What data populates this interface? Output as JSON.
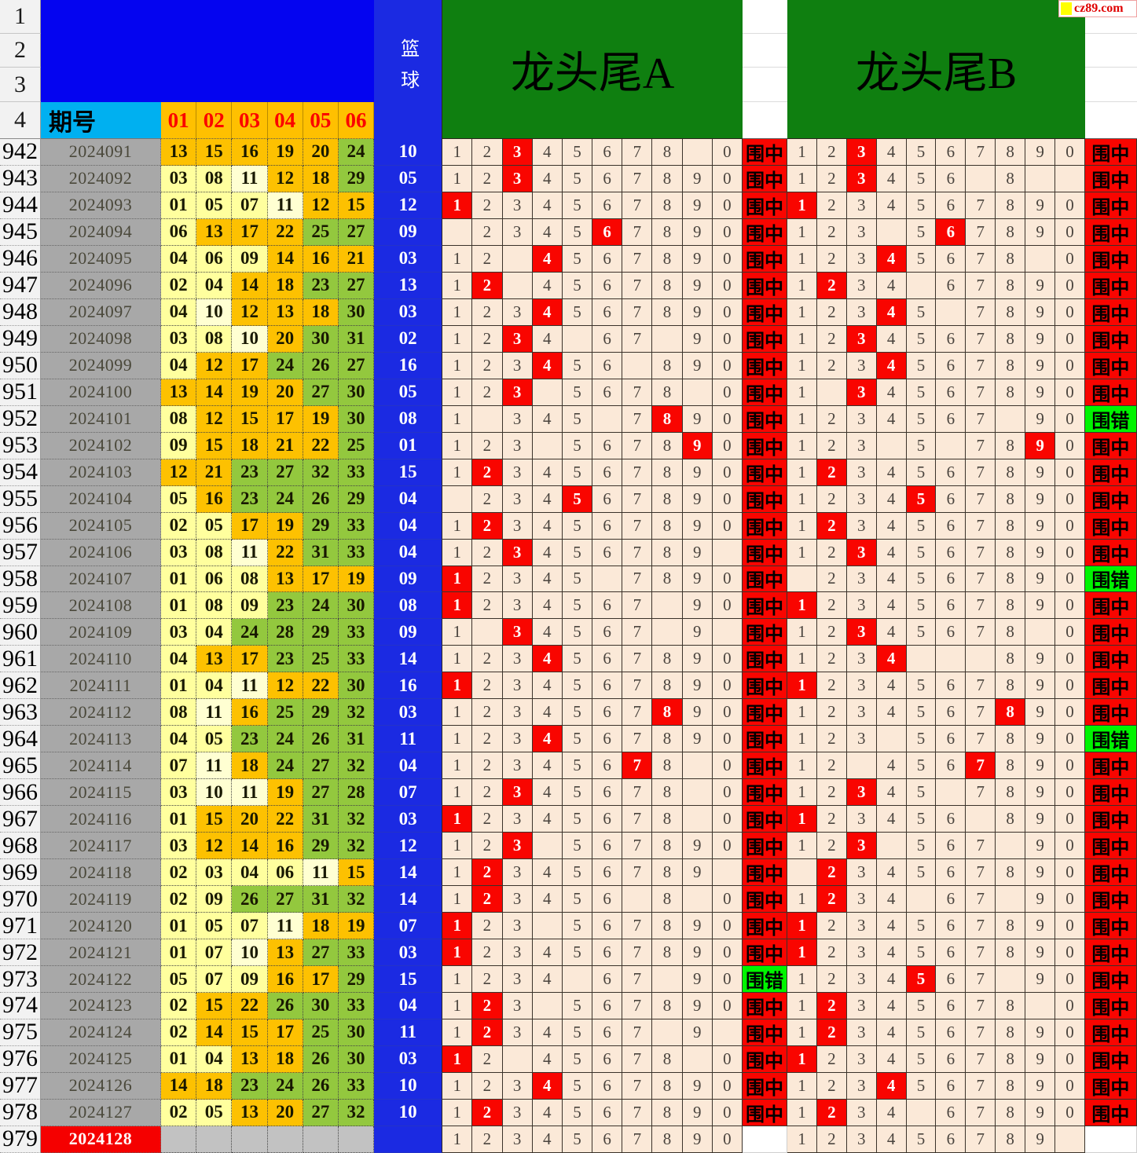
{
  "header": {
    "row_labels": [
      "1",
      "2",
      "3",
      "4"
    ],
    "period_label": "期号",
    "ball_headers": [
      "01",
      "02",
      "03",
      "04",
      "05",
      "06"
    ],
    "blue_label": "篮球",
    "section_a_title": "龙头尾A",
    "section_b_title": "龙头尾B",
    "logo_text": "cz89.com",
    "digit_labels": [
      "1",
      "2",
      "3",
      "4",
      "5",
      "6",
      "7",
      "8",
      "9",
      "0"
    ],
    "result_hit": "围中",
    "result_miss": "围错"
  },
  "colors": {
    "header_blue": "#0404f0",
    "basket_blue": "#1b2ae2",
    "cyan": "#00b0f0",
    "orange": "#ffc000",
    "green_header": "#0f7f10",
    "cell_beige": "#fbe9d8",
    "hit_red": "#f90500",
    "miss_green": "#00f400",
    "ball_yellow": "#ffff9e",
    "ball_pale": "#ffffd2",
    "ball_orange": "#fdc101",
    "ball_green": "#93c83e",
    "period_gray": "#a8a8a8"
  },
  "rows": [
    {
      "n": "942",
      "p": "2024091",
      "k": [
        "13",
        "15",
        "16",
        "19",
        "20",
        "24"
      ],
      "q": "10",
      "a": "nnHnnnnn.n",
      "ar": "hit",
      "b": "nnHnnnnnnn",
      "br": "hit"
    },
    {
      "n": "943",
      "p": "2024092",
      "k": [
        "03",
        "08",
        "11",
        "12",
        "18",
        "29"
      ],
      "q": "05",
      "a": "nnHnnnnnnn",
      "ar": "hit",
      "b": "nnHnnn.n..",
      "br": "hit"
    },
    {
      "n": "944",
      "p": "2024093",
      "k": [
        "01",
        "05",
        "07",
        "11",
        "12",
        "15"
      ],
      "q": "12",
      "a": "Hnnnnnnnnn",
      "ar": "hit",
      "b": "Hnnnnnnnnn",
      "br": "hit"
    },
    {
      "n": "945",
      "p": "2024094",
      "k": [
        "06",
        "13",
        "17",
        "22",
        "25",
        "27"
      ],
      "q": "09",
      "a": ".nnnnHnnnn",
      "ar": "hit",
      "b": "nnn.nHnnnn",
      "br": "hit"
    },
    {
      "n": "946",
      "p": "2024095",
      "k": [
        "04",
        "06",
        "09",
        "14",
        "16",
        "21"
      ],
      "q": "03",
      "a": "nn.Hnnnnnn",
      "ar": "hit",
      "b": "nnnHnnnn.n",
      "br": "hit"
    },
    {
      "n": "947",
      "p": "2024096",
      "k": [
        "02",
        "04",
        "14",
        "18",
        "23",
        "27"
      ],
      "q": "13",
      "a": "nH.nnnnnnn",
      "ar": "hit",
      "b": "nHnn.nnnnn",
      "br": "hit"
    },
    {
      "n": "948",
      "p": "2024097",
      "k": [
        "04",
        "10",
        "12",
        "13",
        "18",
        "30"
      ],
      "q": "03",
      "a": "nnnHnnnnnn",
      "ar": "hit",
      "b": "nnnHn.nnnn",
      "br": "hit"
    },
    {
      "n": "949",
      "p": "2024098",
      "k": [
        "03",
        "08",
        "10",
        "20",
        "30",
        "31"
      ],
      "q": "02",
      "a": "nnHn.nn.nn",
      "ar": "hit",
      "b": "nnHnnnnnnn",
      "br": "hit"
    },
    {
      "n": "950",
      "p": "2024099",
      "k": [
        "04",
        "12",
        "17",
        "24",
        "26",
        "27"
      ],
      "q": "16",
      "a": "nnnHnn.nnn",
      "ar": "hit",
      "b": "nnnHnnnnnn",
      "br": "hit"
    },
    {
      "n": "951",
      "p": "2024100",
      "k": [
        "13",
        "14",
        "19",
        "20",
        "27",
        "30"
      ],
      "q": "05",
      "a": "nnH.nnnn.n",
      "ar": "hit",
      "b": "n.Hnnnnnnn",
      "br": "hit"
    },
    {
      "n": "952",
      "p": "2024101",
      "k": [
        "08",
        "12",
        "15",
        "17",
        "19",
        "30"
      ],
      "q": "08",
      "a": "n.nnn.nHnn",
      "ar": "hit",
      "b": "nnnnnnn.nn",
      "br": "miss"
    },
    {
      "n": "953",
      "p": "2024102",
      "k": [
        "09",
        "15",
        "18",
        "21",
        "22",
        "25"
      ],
      "q": "01",
      "a": "nnn.nnnnHn",
      "ar": "hit",
      "b": "nnn.n.nnHn",
      "br": "hit"
    },
    {
      "n": "954",
      "p": "2024103",
      "k": [
        "12",
        "21",
        "23",
        "27",
        "32",
        "33"
      ],
      "q": "15",
      "a": "nHnnnnnnnn",
      "ar": "hit",
      "b": "nHnnnnnnnn",
      "br": "hit"
    },
    {
      "n": "955",
      "p": "2024104",
      "k": [
        "05",
        "16",
        "23",
        "24",
        "26",
        "29"
      ],
      "q": "04",
      "a": ".nnnHnnnnn",
      "ar": "hit",
      "b": "nnnnHnnnnn",
      "br": "hit"
    },
    {
      "n": "956",
      "p": "2024105",
      "k": [
        "02",
        "05",
        "17",
        "19",
        "29",
        "33"
      ],
      "q": "04",
      "a": "nHnnnnnnnn",
      "ar": "hit",
      "b": "nHnnnnnnnn",
      "br": "hit"
    },
    {
      "n": "957",
      "p": "2024106",
      "k": [
        "03",
        "08",
        "11",
        "22",
        "31",
        "33"
      ],
      "q": "04",
      "a": "nnHnnnnnn.",
      "ar": "hit",
      "b": "nnHnnnnnnn",
      "br": "hit"
    },
    {
      "n": "958",
      "p": "2024107",
      "k": [
        "01",
        "06",
        "08",
        "13",
        "17",
        "19"
      ],
      "q": "09",
      "a": "Hnnnn.nnnn",
      "ar": "hit",
      "b": ".nnnnnnnnn",
      "br": "miss"
    },
    {
      "n": "959",
      "p": "2024108",
      "k": [
        "01",
        "08",
        "09",
        "23",
        "24",
        "30"
      ],
      "q": "08",
      "a": "Hnnnnnn.nn",
      "ar": "hit",
      "b": "Hnnnnnnnnn",
      "br": "hit"
    },
    {
      "n": "960",
      "p": "2024109",
      "k": [
        "03",
        "04",
        "24",
        "28",
        "29",
        "33"
      ],
      "q": "09",
      "a": "n.Hnnnn.n.",
      "ar": "hit",
      "b": "nnHnnnnn.n",
      "br": "hit"
    },
    {
      "n": "961",
      "p": "2024110",
      "k": [
        "04",
        "13",
        "17",
        "23",
        "25",
        "33"
      ],
      "q": "14",
      "a": "nnnHnnnnnn",
      "ar": "hit",
      "b": "nnnH...nnn",
      "br": "hit"
    },
    {
      "n": "962",
      "p": "2024111",
      "k": [
        "01",
        "04",
        "11",
        "12",
        "22",
        "30"
      ],
      "q": "16",
      "a": "Hnnnnnnnnn",
      "ar": "hit",
      "b": "Hnnnnnnnnn",
      "br": "hit"
    },
    {
      "n": "963",
      "p": "2024112",
      "k": [
        "08",
        "11",
        "16",
        "25",
        "29",
        "32"
      ],
      "q": "03",
      "a": "nnnnnnnHnn",
      "ar": "hit",
      "b": "nnnnnnnHnn",
      "br": "hit"
    },
    {
      "n": "964",
      "p": "2024113",
      "k": [
        "04",
        "05",
        "23",
        "24",
        "26",
        "31"
      ],
      "q": "11",
      "a": "nnnHnnnnnn",
      "ar": "hit",
      "b": "nnn.nnnnnn",
      "br": "miss"
    },
    {
      "n": "965",
      "p": "2024114",
      "k": [
        "07",
        "11",
        "18",
        "24",
        "27",
        "32"
      ],
      "q": "04",
      "a": "nnnnnnHn.n",
      "ar": "hit",
      "b": "nn.nnnHnnn",
      "br": "hit"
    },
    {
      "n": "966",
      "p": "2024115",
      "k": [
        "03",
        "10",
        "11",
        "19",
        "27",
        "28"
      ],
      "q": "07",
      "a": "nnHnnnnn.n",
      "ar": "hit",
      "b": "nnHnn.nnnn",
      "br": "hit"
    },
    {
      "n": "967",
      "p": "2024116",
      "k": [
        "01",
        "15",
        "20",
        "22",
        "31",
        "32"
      ],
      "q": "03",
      "a": "Hnnnnnnn.n",
      "ar": "hit",
      "b": "Hnnnnn.nnn",
      "br": "hit"
    },
    {
      "n": "968",
      "p": "2024117",
      "k": [
        "03",
        "12",
        "14",
        "16",
        "29",
        "32"
      ],
      "q": "12",
      "a": "nnH.nnnnnn",
      "ar": "hit",
      "b": "nnH.nnn.nn",
      "br": "hit"
    },
    {
      "n": "969",
      "p": "2024118",
      "k": [
        "02",
        "03",
        "04",
        "06",
        "11",
        "15"
      ],
      "q": "14",
      "a": "nHnnnnnnn.",
      "ar": "hit",
      "b": ".Hnnnnnnnn",
      "br": "hit"
    },
    {
      "n": "970",
      "p": "2024119",
      "k": [
        "02",
        "09",
        "26",
        "27",
        "31",
        "32"
      ],
      "q": "14",
      "a": "nHnnnn.n.n",
      "ar": "hit",
      "b": "nHnn.nn.nn",
      "br": "hit"
    },
    {
      "n": "971",
      "p": "2024120",
      "k": [
        "01",
        "05",
        "07",
        "11",
        "18",
        "19"
      ],
      "q": "07",
      "a": "Hnn.nnnnnn",
      "ar": "hit",
      "b": "Hnnnnnnnnn",
      "br": "hit"
    },
    {
      "n": "972",
      "p": "2024121",
      "k": [
        "01",
        "07",
        "10",
        "13",
        "27",
        "33"
      ],
      "q": "03",
      "a": "Hnnnnnnnnn",
      "ar": "hit",
      "b": "Hnnnnnnnnn",
      "br": "hit"
    },
    {
      "n": "973",
      "p": "2024122",
      "k": [
        "05",
        "07",
        "09",
        "16",
        "17",
        "29"
      ],
      "q": "15",
      "a": "nnnn.nn.nn",
      "ar": "miss",
      "b": "nnnnHnn.nn",
      "br": "hit"
    },
    {
      "n": "974",
      "p": "2024123",
      "k": [
        "02",
        "15",
        "22",
        "26",
        "30",
        "33"
      ],
      "q": "04",
      "a": "nHn.nnnnnn",
      "ar": "hit",
      "b": "nHnnnnnn.n",
      "br": "hit"
    },
    {
      "n": "975",
      "p": "2024124",
      "k": [
        "02",
        "14",
        "15",
        "17",
        "25",
        "30"
      ],
      "q": "11",
      "a": "nHnnnnn.n.",
      "ar": "hit",
      "b": "nHnnnnnnnn",
      "br": "hit"
    },
    {
      "n": "976",
      "p": "2024125",
      "k": [
        "01",
        "04",
        "13",
        "18",
        "26",
        "30"
      ],
      "q": "03",
      "a": "Hn.nnnnn.n",
      "ar": "hit",
      "b": "Hnnnnnnnnn",
      "br": "hit"
    },
    {
      "n": "977",
      "p": "2024126",
      "k": [
        "14",
        "18",
        "23",
        "24",
        "26",
        "33"
      ],
      "q": "10",
      "a": "nnnHnnnnnn",
      "ar": "hit",
      "b": "nnnHnnnnnn",
      "br": "hit"
    },
    {
      "n": "978",
      "p": "2024127",
      "k": [
        "02",
        "05",
        "13",
        "20",
        "27",
        "32"
      ],
      "q": "10",
      "a": "nHnnnnnnnn",
      "ar": "hit",
      "b": "nHnn.nnnnn",
      "br": "hit"
    },
    {
      "n": "979",
      "p": "2024128",
      "k": [
        "",
        "",
        "",
        "",
        "",
        ""
      ],
      "q": "",
      "a": "nnnnnnnnnn",
      "ar": "",
      "b": "nnnnnnnnn.",
      "br": ""
    }
  ]
}
